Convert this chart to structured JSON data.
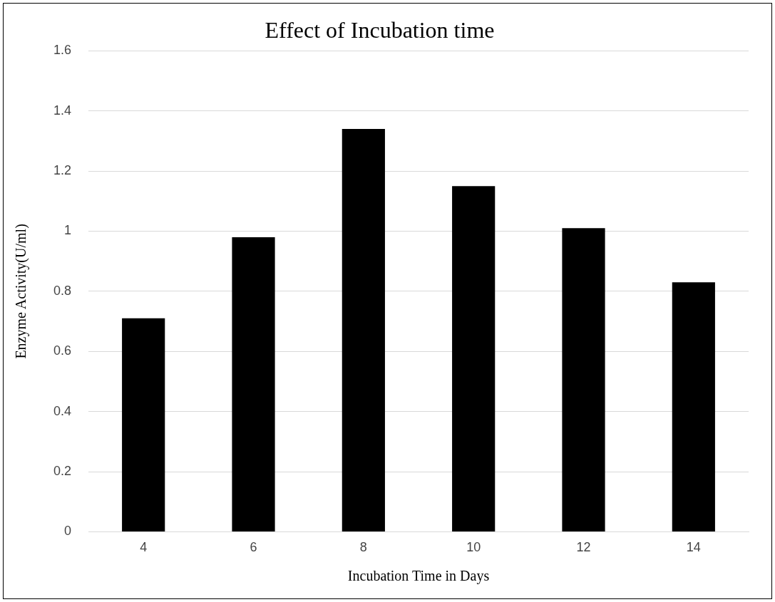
{
  "chart_data": {
    "type": "bar",
    "title": "Effect of Incubation time",
    "xlabel": "Incubation Time in Days",
    "ylabel": "Enzyme Activity(U/ml)",
    "categories": [
      "4",
      "6",
      "8",
      "10",
      "12",
      "14"
    ],
    "values": [
      0.71,
      0.98,
      1.34,
      1.15,
      1.01,
      0.83
    ],
    "color": "#000000",
    "ylim": [
      0,
      1.6
    ],
    "yticks": [
      0,
      0.2,
      0.4,
      0.6,
      0.8,
      1,
      1.2,
      1.4,
      1.6
    ],
    "grid": "y",
    "legend": false
  }
}
